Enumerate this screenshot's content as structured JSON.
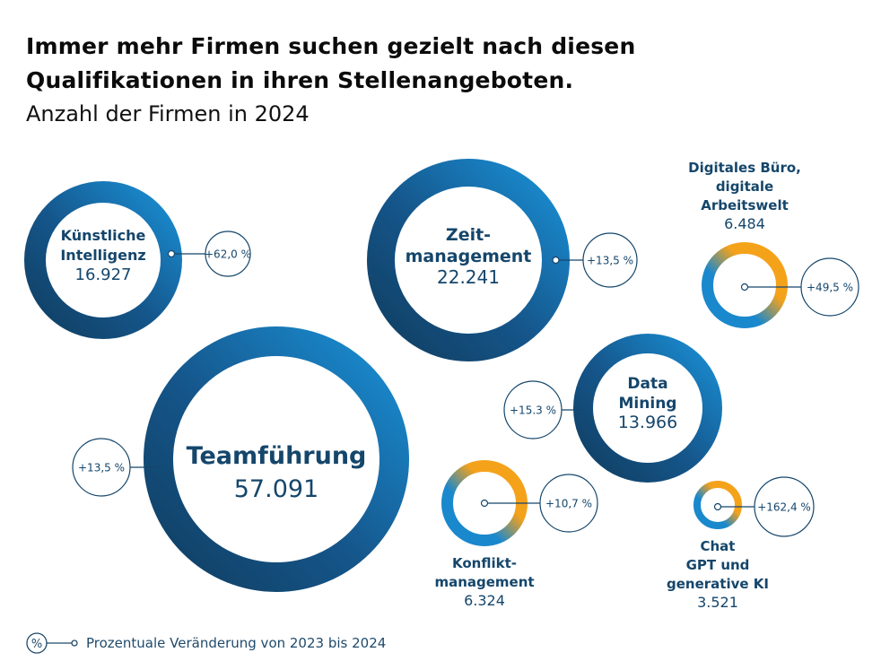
{
  "title_line1": "Immer mehr Firmen suchen gezielt nach diesen",
  "title_line2": "Qualifikationen in ihren Stellenangeboten.",
  "subtitle": "Anzahl der Firmen in 2024",
  "legend": {
    "icon": "percent-icon",
    "symbol": "%",
    "text": "Prozentuale Veränderung von 2023 bis 2024"
  },
  "colors": {
    "blue_dark": "#14466c",
    "blue_light": "#1a8bd0",
    "orange": "#f5a21b",
    "text": "#15466b"
  },
  "chart_data": {
    "type": "bubble-rings",
    "title": "Immer mehr Firmen suchen gezielt nach diesen Qualifikationen in ihren Stellenangeboten.",
    "subtitle": "Anzahl der Firmen in 2024",
    "legend_note": "Prozentuale Veränderung von 2023 bis 2024",
    "items": [
      {
        "id": "ki",
        "label_lines": [
          "Künstliche",
          "Intelligenz"
        ],
        "value": 16927,
        "value_label": "16.927",
        "change": "+62,0 %",
        "style": "blue"
      },
      {
        "id": "zeit",
        "label_lines": [
          "Zeit-",
          "management"
        ],
        "value": 22241,
        "value_label": "22.241",
        "change": "+13,5 %",
        "style": "blue"
      },
      {
        "id": "digital",
        "label_lines": [
          "Digitales Büro,",
          "digitale",
          "Arbeitswelt"
        ],
        "value": 6484,
        "value_label": "6.484",
        "change": "+49,5 %",
        "style": "orange"
      },
      {
        "id": "team",
        "label_lines": [
          "Teamführung"
        ],
        "value": 57091,
        "value_label": "57.091",
        "change": "+13,5 %",
        "style": "blue"
      },
      {
        "id": "data",
        "label_lines": [
          "Data",
          "Mining"
        ],
        "value": 13966,
        "value_label": "13.966",
        "change": "+15.3 %",
        "style": "blue"
      },
      {
        "id": "konflikt",
        "label_lines": [
          "Konflikt-",
          "management"
        ],
        "value": 6324,
        "value_label": "6.324",
        "change": "+10,7 %",
        "style": "orange"
      },
      {
        "id": "chat",
        "label_lines": [
          "Chat",
          "GPT und",
          "generative KI"
        ],
        "value": 3521,
        "value_label": "3.521",
        "change": "+162,4 %",
        "style": "orange"
      }
    ]
  }
}
